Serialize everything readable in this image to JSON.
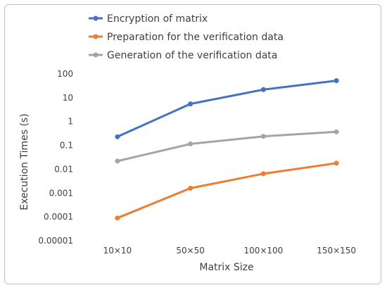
{
  "chart_data": {
    "type": "line",
    "title": "",
    "xlabel": "Matrix Size",
    "ylabel": "Execution Times (s)",
    "yscale": "log",
    "ylim": [
      1e-05,
      100
    ],
    "y_ticks": [
      "0.00001",
      "0.0001",
      "0.001",
      "0.01",
      "0.1",
      "1",
      "10",
      "100"
    ],
    "y_tick_values": [
      1e-05,
      0.0001,
      0.001,
      0.01,
      0.1,
      1,
      10,
      100
    ],
    "categories": [
      "10×10",
      "50×50",
      "100×100",
      "150×150"
    ],
    "grid": false,
    "legend_position": "top",
    "series": [
      {
        "name": "Encryption of matrix",
        "color": "#4472C4",
        "values": [
          0.23,
          5.5,
          22,
          52
        ]
      },
      {
        "name": "Preparation for the verification data",
        "color": "#ED7D31",
        "values": [
          9e-05,
          0.0016,
          0.0065,
          0.018
        ]
      },
      {
        "name": "Generation of the verification data",
        "color": "#A5A5A5",
        "values": [
          0.022,
          0.115,
          0.24,
          0.37
        ]
      }
    ]
  }
}
